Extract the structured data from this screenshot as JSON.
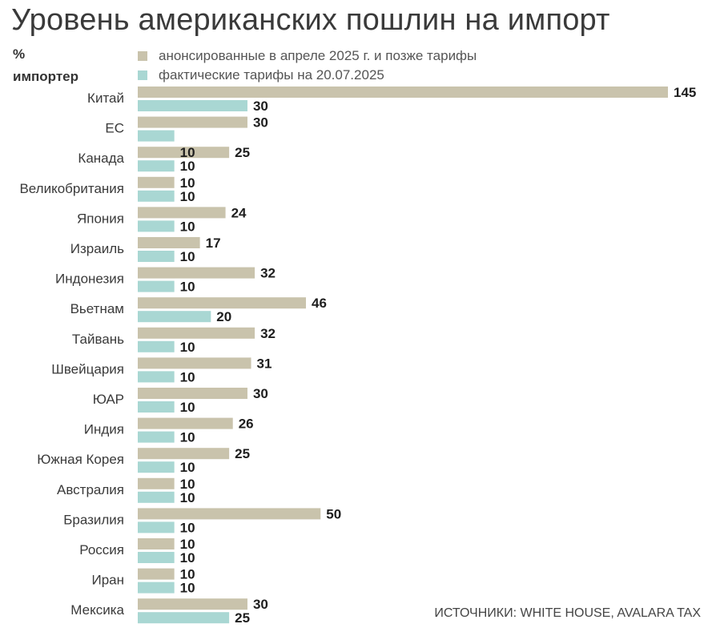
{
  "title": "Уровень американских пошлин на импорт",
  "unit": "%",
  "row_header": "импортер",
  "source": "ИСТОЧНИКИ: WHITE HOUSE, AVALARA TAX",
  "colors": {
    "announced": "#c9c3ac",
    "actual": "#a9d7d3",
    "text": "#3a3a3a",
    "value_label": "#1e1e1e"
  },
  "chart_data": {
    "type": "bar",
    "orientation": "horizontal",
    "categories": [
      "Китай",
      "ЕС",
      "Канада",
      "Великобритания",
      "Япония",
      "Израиль",
      "Индонезия",
      "Вьетнам",
      "Тайвань",
      "Швейцария",
      "ЮАР",
      "Индия",
      "Южная Корея",
      "Австралия",
      "Бразилия",
      "Россия",
      "Иран",
      "Мексика"
    ],
    "series": [
      {
        "name": "анонсированные в апреле 2025 г. и позже тарифы",
        "values": [
          145,
          30,
          25,
          10,
          24,
          17,
          32,
          46,
          32,
          31,
          30,
          26,
          25,
          10,
          50,
          10,
          10,
          30
        ]
      },
      {
        "name": "фактические тарифы на 20.07.2025",
        "values": [
          30,
          10,
          10,
          10,
          10,
          10,
          10,
          20,
          10,
          10,
          10,
          10,
          10,
          10,
          10,
          10,
          10,
          25
        ]
      }
    ],
    "value_labels": {
      "announced": [
        "145",
        "30",
        "25",
        "10",
        "24",
        "17",
        "32",
        "46",
        "32",
        "31",
        "30",
        "26",
        "25",
        "10",
        "50",
        "10",
        "10",
        "30"
      ],
      "actual": [
        "30",
        "",
        "10",
        "10",
        "10",
        "10",
        "10",
        "20",
        "10",
        "10",
        "10",
        "10",
        "10",
        "10",
        "10",
        "10",
        "10",
        "25"
      ]
    },
    "extra_labels": [
      {
        "category": "Канада",
        "series": "анонсированные в апреле 2025 г. и позже тарифы",
        "text": "10"
      }
    ],
    "xlim": [
      0,
      145
    ],
    "grid": false,
    "legend_position": "top"
  }
}
